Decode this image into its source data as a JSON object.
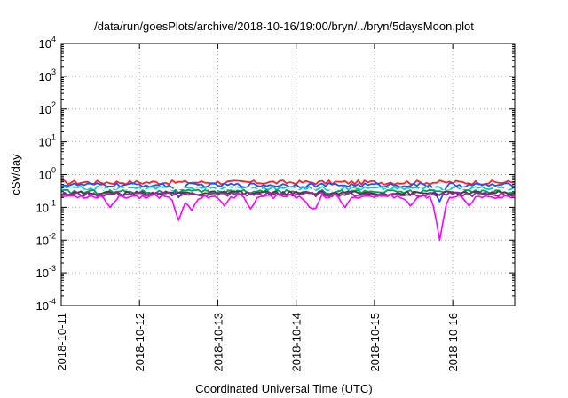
{
  "chart_data": {
    "type": "line",
    "title": "/data/run/goesPlots/archive/2018-10-16/19:00/bryn/../bryn/5daysMoon.plot",
    "xlabel": "Coordinated Universal Time (UTC)",
    "ylabel": "cSv/day",
    "yscale": "log",
    "ylim": [
      0.0001,
      10000
    ],
    "xlim": [
      "2018-10-11",
      "2018-10-16 19:00"
    ],
    "x_tick_labels": [
      "2018-10-11",
      "2018-10-12",
      "2018-10-13",
      "2018-10-14",
      "2018-10-15",
      "2018-10-16"
    ],
    "y_ticks": [
      {
        "base": "10",
        "exp": "-4",
        "value": 0.0001
      },
      {
        "base": "10",
        "exp": "-3",
        "value": 0.001
      },
      {
        "base": "10",
        "exp": "-2",
        "value": 0.01
      },
      {
        "base": "10",
        "exp": "-1",
        "value": 0.1
      },
      {
        "base": "10",
        "exp": "0",
        "value": 1
      },
      {
        "base": "10",
        "exp": "1",
        "value": 10
      },
      {
        "base": "10",
        "exp": "2",
        "value": 100
      },
      {
        "base": "10",
        "exp": "3",
        "value": 1000
      },
      {
        "base": "10",
        "exp": "4",
        "value": 10000
      }
    ],
    "grid": true,
    "legend": "none",
    "x_days": [
      "2018-10-11",
      "2018-10-11 12:00",
      "2018-10-12",
      "2018-10-12 12:00",
      "2018-10-13",
      "2018-10-13 12:00",
      "2018-10-14",
      "2018-10-14 12:00",
      "2018-10-15",
      "2018-10-15 12:00",
      "2018-10-16",
      "2018-10-16 12:00",
      "2018-10-16 19:00"
    ],
    "series": [
      {
        "color": "#ff2020",
        "base_value": 0.58,
        "dips": []
      },
      {
        "color": "#2050ff",
        "base_value": 0.48,
        "dips": [
          {
            "x": "2018-10-12 12:00",
            "value": 0.2
          },
          {
            "x": "2018-10-15 20:00",
            "value": 0.15
          }
        ]
      },
      {
        "color": "#00cccc",
        "base_value": 0.38,
        "dips": []
      },
      {
        "color": "#ffffff",
        "base_value": 0.34,
        "dips": []
      },
      {
        "color": "#00a050",
        "base_value": 0.3,
        "dips": []
      },
      {
        "color": "#404040",
        "base_value": 0.27,
        "dips": []
      },
      {
        "color": "#a020a0",
        "base_value": 0.25,
        "dips": []
      },
      {
        "color": "#ff00ff",
        "base_value": 0.22,
        "dips": [
          {
            "x": "2018-10-11 15:00",
            "value": 0.1
          },
          {
            "x": "2018-10-12 12:00",
            "value": 0.04
          },
          {
            "x": "2018-10-12 16:00",
            "value": 0.08
          },
          {
            "x": "2018-10-13 02:00",
            "value": 0.11
          },
          {
            "x": "2018-10-13 10:00",
            "value": 0.09
          },
          {
            "x": "2018-10-14 04:00",
            "value": 0.12
          },
          {
            "x": "2018-10-14 05:30",
            "value": 0.08
          },
          {
            "x": "2018-10-14 15:00",
            "value": 0.1
          },
          {
            "x": "2018-10-15 11:00",
            "value": 0.11
          },
          {
            "x": "2018-10-15 20:00",
            "value": 0.01
          },
          {
            "x": "2018-10-16 05:00",
            "value": 0.11
          }
        ]
      }
    ]
  }
}
